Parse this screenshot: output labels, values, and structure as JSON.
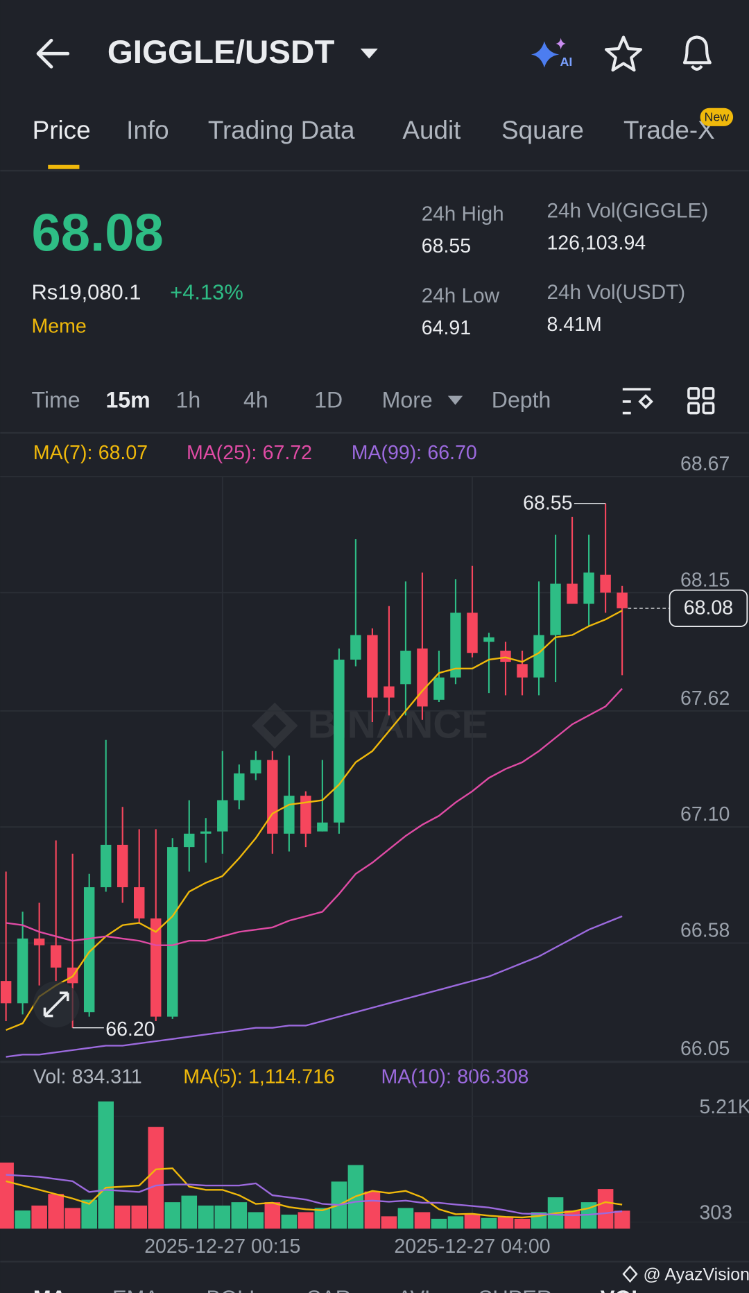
{
  "header": {
    "title": "GIGGLE/USDT",
    "ai_label": "AI"
  },
  "tabs": [
    "Price",
    "Info",
    "Trading Data",
    "Audit",
    "Square",
    "Trade-X"
  ],
  "tab_badge": "New",
  "price": {
    "last": "68.08",
    "fiat": "Rs19,080.1",
    "change": "+4.13%",
    "tag": "Meme"
  },
  "stats": [
    {
      "label": "24h High",
      "value": "68.55"
    },
    {
      "label": "24h Vol(GIGGLE)",
      "value": "126,103.94"
    },
    {
      "label": "24h Low",
      "value": "64.91"
    },
    {
      "label": "24h Vol(USDT)",
      "value": "8.41M"
    }
  ],
  "intervals": [
    "Time",
    "15m",
    "1h",
    "4h",
    "1D",
    "More",
    "Depth"
  ],
  "watermark": "BINANCE",
  "credit": "@ AyazVision",
  "indicator_tabs": [
    "MA",
    "EMA",
    "BOLL",
    "SAR",
    "AVL",
    "SUPER",
    "VOL"
  ],
  "chart_data": [
    {
      "type": "candlestick",
      "categories": [
        null,
        null,
        null,
        null,
        null,
        null,
        null,
        null,
        null,
        null,
        null,
        null,
        null,
        "2025-12-27 00:15",
        null,
        null,
        null,
        null,
        null,
        null,
        null,
        null,
        null,
        null,
        null,
        null,
        null,
        null,
        "2025-12-27 04:00",
        null,
        null,
        null,
        null,
        null,
        null,
        null,
        null,
        null
      ],
      "open": [
        66.41,
        66.31,
        66.6,
        66.57,
        66.47,
        66.27,
        66.83,
        67.02,
        66.83,
        66.69,
        66.25,
        67.01,
        67.07,
        67.08,
        67.22,
        67.34,
        67.4,
        67.07,
        67.24,
        67.08,
        67.12,
        67.85,
        67.96,
        67.73,
        67.74,
        67.9,
        67.67,
        67.77,
        68.06,
        67.93,
        67.89,
        67.83,
        67.77,
        67.96,
        68.19,
        68.1,
        68.23,
        68.15
      ],
      "high": [
        66.9,
        66.72,
        66.76,
        67.04,
        66.98,
        66.89,
        67.49,
        67.19,
        67.09,
        67.09,
        67.05,
        67.22,
        67.14,
        67.44,
        67.38,
        67.44,
        67.44,
        67.42,
        67.26,
        67.4,
        67.9,
        68.39,
        67.99,
        68.09,
        68.2,
        68.24,
        67.89,
        68.21,
        68.27,
        67.97,
        67.93,
        67.89,
        68.2,
        68.41,
        68.49,
        68.41,
        68.55,
        68.18
      ],
      "low": [
        66.23,
        66.26,
        66.39,
        66.41,
        66.2,
        66.25,
        66.81,
        66.76,
        66.67,
        66.23,
        66.24,
        66.9,
        66.94,
        66.98,
        67.18,
        67.31,
        66.98,
        66.99,
        67.01,
        67.08,
        67.07,
        67.82,
        67.57,
        67.6,
        67.6,
        67.58,
        67.66,
        67.74,
        67.86,
        67.7,
        67.69,
        67.69,
        67.69,
        67.75,
        68.1,
        68.0,
        68.06,
        67.78
      ],
      "close": [
        66.31,
        66.6,
        66.57,
        66.47,
        66.4,
        66.83,
        67.02,
        66.83,
        66.69,
        66.25,
        67.01,
        67.07,
        67.08,
        67.22,
        67.34,
        67.4,
        67.07,
        67.24,
        67.07,
        67.12,
        67.85,
        67.96,
        67.68,
        67.68,
        67.89,
        67.64,
        67.77,
        68.06,
        67.88,
        67.95,
        67.84,
        67.77,
        67.96,
        68.19,
        68.1,
        68.24,
        68.15,
        68.08
      ],
      "up_color": "#2ebd85",
      "down_color": "#f6465d",
      "series": [
        {
          "name": "MA(7):",
          "color": "#f0b90b",
          "values": [
            66.19,
            66.22,
            66.34,
            66.39,
            66.43,
            66.54,
            66.61,
            66.66,
            66.67,
            66.63,
            66.7,
            66.81,
            66.85,
            66.88,
            66.96,
            67.05,
            67.16,
            67.2,
            67.21,
            67.22,
            67.29,
            67.39,
            67.44,
            67.53,
            67.62,
            67.71,
            67.79,
            67.81,
            67.81,
            67.85,
            67.86,
            67.84,
            67.88,
            67.95,
            67.96,
            68.0,
            68.03,
            68.07
          ]
        },
        {
          "name": "MA(25):",
          "color": "#e04ba5",
          "values": [
            66.67,
            66.66,
            66.63,
            66.61,
            66.59,
            66.6,
            66.61,
            66.6,
            66.59,
            66.57,
            66.57,
            66.59,
            66.59,
            66.61,
            66.63,
            66.64,
            66.65,
            66.68,
            66.7,
            66.72,
            66.8,
            66.89,
            66.94,
            67.0,
            67.06,
            67.11,
            67.15,
            67.21,
            67.26,
            67.32,
            67.36,
            67.39,
            67.44,
            67.5,
            67.56,
            67.6,
            67.64,
            67.72
          ]
        },
        {
          "name": "MA(99):",
          "color": "#9c6ade",
          "values": [
            66.07,
            66.08,
            66.08,
            66.09,
            66.1,
            66.11,
            66.12,
            66.12,
            66.13,
            66.14,
            66.15,
            66.16,
            66.17,
            66.18,
            66.19,
            66.2,
            66.2,
            66.21,
            66.21,
            66.23,
            66.25,
            66.27,
            66.29,
            66.31,
            66.33,
            66.35,
            66.37,
            66.39,
            66.41,
            66.43,
            66.46,
            66.49,
            66.52,
            66.56,
            66.6,
            66.64,
            66.67,
            66.7
          ],
          "value_labels": [
            null,
            null,
            null,
            null,
            null,
            null,
            null,
            null,
            null,
            null,
            null,
            null,
            null,
            null,
            null,
            null,
            null,
            null,
            null,
            null,
            null,
            null,
            null,
            null,
            null,
            null,
            null,
            null,
            null,
            null,
            null,
            null,
            null,
            null,
            null,
            null,
            null,
            "66.70"
          ]
        }
      ],
      "annotations": [
        "68.55",
        "66.20"
      ],
      "ylim": [
        66.05,
        68.67
      ],
      "yticks": [
        68.67,
        68.15,
        67.62,
        {
          "value": 67.1,
          "label": "67.10"
        },
        66.58,
        66.05
      ],
      "grid": true
    },
    {
      "type": "bar",
      "label": "Vol:",
      "values": [
        3064,
        843,
        1072,
        1609,
        958,
        1341,
        5898,
        1072,
        1072,
        4711,
        1226,
        1532,
        1072,
        1072,
        1226,
        766,
        1226,
        651,
        766,
        958,
        2183,
        2949,
        1724,
        575,
        958,
        766,
        460,
        575,
        689,
        498,
        536,
        460,
        766,
        1455,
        843,
        1226,
        1838,
        834.311
      ],
      "series": [
        {
          "name": "MA(5):",
          "color": "#f0b90b",
          "values": [
            2200,
            2000,
            1800,
            1600,
            1400,
            1150,
            1900,
            1950,
            2000,
            2750,
            2800,
            1950,
            1800,
            1800,
            1550,
            1150,
            1200,
            1000,
            900,
            850,
            1100,
            1500,
            1750,
            1650,
            1750,
            1450,
            900,
            670,
            690,
            600,
            550,
            520,
            590,
            720,
            800,
            950,
            1230,
            1114.716
          ],
          "value_labels": [
            null,
            null,
            null,
            null,
            null,
            null,
            null,
            null,
            null,
            null,
            null,
            null,
            null,
            null,
            null,
            null,
            null,
            null,
            null,
            null,
            null,
            null,
            null,
            null,
            null,
            null,
            null,
            null,
            null,
            null,
            null,
            null,
            null,
            null,
            null,
            null,
            null,
            "1,114.716"
          ]
        },
        {
          "name": "MA(10):",
          "color": "#9c6ade",
          "values": [
            2500,
            2450,
            2400,
            2300,
            2200,
            1700,
            1800,
            1750,
            1700,
            2000,
            2050,
            2050,
            2000,
            2000,
            2000,
            2100,
            1550,
            1450,
            1350,
            1150,
            1100,
            1250,
            1300,
            1250,
            1300,
            1200,
            1200,
            1120,
            1050,
            980,
            850,
            700,
            680,
            650,
            620,
            650,
            720,
            806.308
          ]
        }
      ],
      "ylim": [
        0,
        6000
      ],
      "yticks": [
        {
          "value": 5210,
          "label": "5.21K"
        },
        303
      ]
    }
  ]
}
